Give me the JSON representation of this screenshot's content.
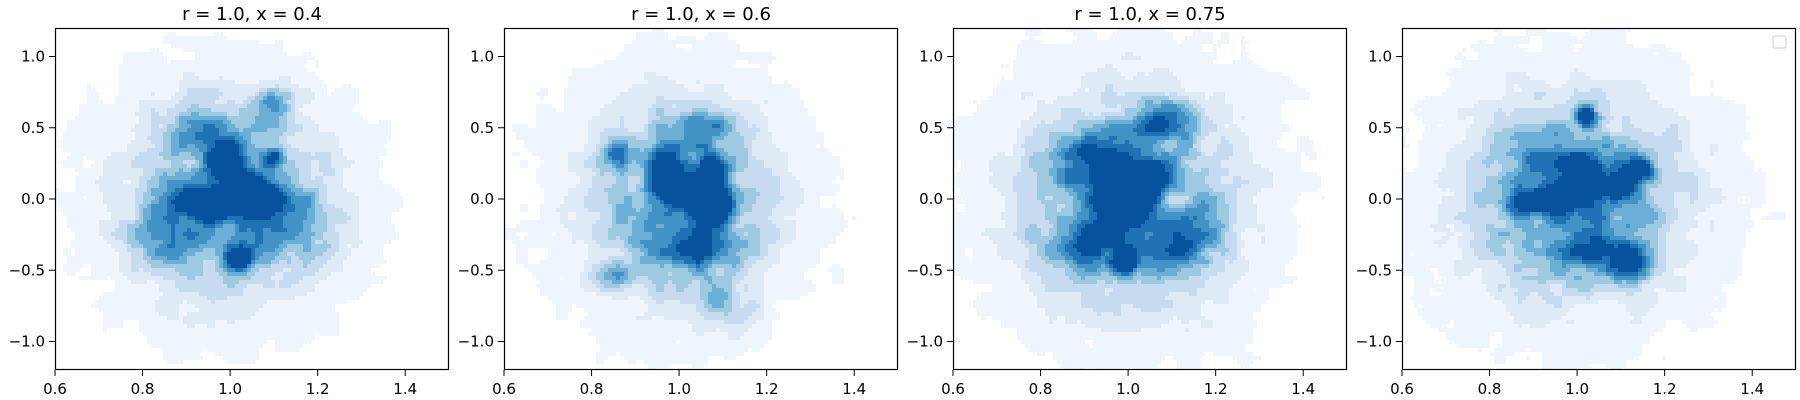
{
  "chart_data": [
    {
      "type": "density-contour",
      "title": "r = 1.0, x = 0.4",
      "xlim": [
        0.6,
        1.5
      ],
      "ylim": [
        -1.2,
        1.2
      ],
      "xticks": [
        0.6,
        0.8,
        1.0,
        1.2,
        1.4
      ],
      "xtick_labels": [
        "0.6",
        "0.8",
        "1.0",
        "1.2",
        "1.4"
      ],
      "yticks": [
        -1.0,
        -0.5,
        0.0,
        0.5,
        1.0
      ],
      "ytick_labels": [
        "−1.0",
        "−0.5",
        "0.0",
        "0.5",
        "1.0"
      ],
      "grid": false,
      "colormap": "Blues",
      "peaks": [
        {
          "x": 0.99,
          "y": 0.28,
          "sx": 0.03,
          "sy": 0.09,
          "w": 1.0
        },
        {
          "x": 0.95,
          "y": -0.03,
          "sx": 0.055,
          "sy": 0.07,
          "w": 1.0
        },
        {
          "x": 1.06,
          "y": 0.02,
          "sx": 0.04,
          "sy": 0.1,
          "w": 0.95
        },
        {
          "x": 1.02,
          "y": -0.42,
          "sx": 0.022,
          "sy": 0.06,
          "w": 0.9
        },
        {
          "x": 1.1,
          "y": 0.3,
          "sx": 0.015,
          "sy": 0.04,
          "w": 0.6
        },
        {
          "x": 0.92,
          "y": 0.5,
          "sx": 0.05,
          "sy": 0.12,
          "w": 0.45
        },
        {
          "x": 1.1,
          "y": 0.65,
          "sx": 0.03,
          "sy": 0.08,
          "w": 0.45
        },
        {
          "x": 0.85,
          "y": -0.25,
          "sx": 0.06,
          "sy": 0.15,
          "w": 0.35
        },
        {
          "x": 1.15,
          "y": -0.2,
          "sx": 0.06,
          "sy": 0.15,
          "w": 0.35
        },
        {
          "x": 1.0,
          "y": 0.0,
          "sx": 0.15,
          "sy": 0.45,
          "w": 0.55
        },
        {
          "x": 1.0,
          "y": 0.0,
          "sx": 0.25,
          "sy": 0.75,
          "w": 0.12
        }
      ]
    },
    {
      "type": "density-contour",
      "title": "r = 1.0, x = 0.6",
      "xlim": [
        0.6,
        1.5
      ],
      "ylim": [
        -1.2,
        1.2
      ],
      "xticks": [
        0.6,
        0.8,
        1.0,
        1.2,
        1.4
      ],
      "xtick_labels": [
        "0.6",
        "0.8",
        "1.0",
        "1.2",
        "1.4"
      ],
      "yticks": [
        -1.0,
        -0.5,
        0.0,
        0.5,
        1.0
      ],
      "ytick_labels": [
        "−1.0",
        "−0.5",
        "0.0",
        "0.5",
        "1.0"
      ],
      "grid": false,
      "colormap": "Blues",
      "peaks": [
        {
          "x": 0.97,
          "y": 0.18,
          "sx": 0.025,
          "sy": 0.13,
          "w": 1.0
        },
        {
          "x": 1.02,
          "y": 0.05,
          "sx": 0.03,
          "sy": 0.08,
          "w": 0.9
        },
        {
          "x": 1.07,
          "y": 0.15,
          "sx": 0.02,
          "sy": 0.12,
          "w": 0.95
        },
        {
          "x": 1.09,
          "y": -0.05,
          "sx": 0.025,
          "sy": 0.08,
          "w": 0.85
        },
        {
          "x": 0.86,
          "y": 0.32,
          "sx": 0.03,
          "sy": 0.07,
          "w": 0.55
        },
        {
          "x": 1.05,
          "y": 0.55,
          "sx": 0.04,
          "sy": 0.08,
          "w": 0.45
        },
        {
          "x": 0.85,
          "y": -0.55,
          "sx": 0.03,
          "sy": 0.06,
          "w": 0.4
        },
        {
          "x": 1.05,
          "y": -0.35,
          "sx": 0.07,
          "sy": 0.12,
          "w": 0.5
        },
        {
          "x": 1.1,
          "y": -0.75,
          "sx": 0.05,
          "sy": 0.12,
          "w": 0.3
        },
        {
          "x": 1.0,
          "y": 0.0,
          "sx": 0.14,
          "sy": 0.45,
          "w": 0.55
        },
        {
          "x": 1.0,
          "y": 0.0,
          "sx": 0.24,
          "sy": 0.75,
          "w": 0.12
        }
      ]
    },
    {
      "type": "density-contour",
      "title": "r = 1.0, x = 0.75",
      "xlim": [
        0.6,
        1.5
      ],
      "ylim": [
        -1.2,
        1.2
      ],
      "xticks": [
        0.6,
        0.8,
        1.0,
        1.2,
        1.4
      ],
      "xtick_labels": [
        "0.6",
        "0.8",
        "1.0",
        "1.2",
        "1.4"
      ],
      "yticks": [
        -1.0,
        -0.5,
        0.0,
        0.5,
        1.0
      ],
      "ytick_labels": [
        "−1.0",
        "−0.5",
        "0.0",
        "0.5",
        "1.0"
      ],
      "grid": false,
      "colormap": "Blues",
      "peaks": [
        {
          "x": 0.97,
          "y": 0.05,
          "sx": 0.03,
          "sy": 0.2,
          "w": 1.0
        },
        {
          "x": 1.05,
          "y": 0.15,
          "sx": 0.03,
          "sy": 0.09,
          "w": 0.95
        },
        {
          "x": 0.99,
          "y": -0.45,
          "sx": 0.02,
          "sy": 0.05,
          "w": 0.85
        },
        {
          "x": 1.1,
          "y": 0.0,
          "sx": 0.02,
          "sy": 0.05,
          "w": -0.35
        },
        {
          "x": 0.9,
          "y": 0.3,
          "sx": 0.05,
          "sy": 0.1,
          "w": 0.5
        },
        {
          "x": 1.08,
          "y": 0.55,
          "sx": 0.05,
          "sy": 0.1,
          "w": 0.5
        },
        {
          "x": 0.9,
          "y": -0.3,
          "sx": 0.06,
          "sy": 0.15,
          "w": 0.5
        },
        {
          "x": 1.12,
          "y": -0.3,
          "sx": 0.06,
          "sy": 0.15,
          "w": 0.45
        },
        {
          "x": 1.0,
          "y": 0.0,
          "sx": 0.16,
          "sy": 0.48,
          "w": 0.6
        },
        {
          "x": 1.0,
          "y": 0.0,
          "sx": 0.27,
          "sy": 0.8,
          "w": 0.13
        }
      ]
    },
    {
      "type": "density-contour",
      "title": "",
      "xlim": [
        0.6,
        1.5
      ],
      "ylim": [
        -1.2,
        1.2
      ],
      "xticks": [
        0.6,
        0.8,
        1.0,
        1.2,
        1.4
      ],
      "xtick_labels": [
        "0.6",
        "0.8",
        "1.0",
        "1.2",
        "1.4"
      ],
      "yticks": [
        -1.0,
        -0.5,
        0.0,
        0.5,
        1.0
      ],
      "ytick_labels": [
        "−1.0",
        "−0.5",
        "0.0",
        "0.5",
        "1.0"
      ],
      "grid": false,
      "colormap": "Blues",
      "legend": "top-right",
      "peaks": [
        {
          "x": 0.92,
          "y": -0.02,
          "sx": 0.05,
          "sy": 0.05,
          "w": 1.0
        },
        {
          "x": 0.97,
          "y": 0.05,
          "sx": 0.03,
          "sy": 0.05,
          "w": 0.8
        },
        {
          "x": 1.02,
          "y": 0.58,
          "sx": 0.015,
          "sy": 0.05,
          "w": 1.0
        },
        {
          "x": 1.14,
          "y": 0.2,
          "sx": 0.025,
          "sy": 0.06,
          "w": 0.95
        },
        {
          "x": 1.09,
          "y": 0.08,
          "sx": 0.03,
          "sy": 0.05,
          "w": 0.8
        },
        {
          "x": 1.0,
          "y": 0.2,
          "sx": 0.04,
          "sy": 0.1,
          "w": 0.5
        },
        {
          "x": 1.13,
          "y": -0.45,
          "sx": 0.03,
          "sy": 0.1,
          "w": 0.6
        },
        {
          "x": 1.05,
          "y": -0.35,
          "sx": 0.05,
          "sy": 0.12,
          "w": 0.45
        },
        {
          "x": 0.9,
          "y": 0.35,
          "sx": 0.05,
          "sy": 0.1,
          "w": 0.35
        },
        {
          "x": 1.0,
          "y": 0.0,
          "sx": 0.16,
          "sy": 0.45,
          "w": 0.6
        },
        {
          "x": 1.0,
          "y": 0.0,
          "sx": 0.27,
          "sy": 0.78,
          "w": 0.13
        }
      ]
    }
  ],
  "colors": {
    "levels": [
      "#ffffff",
      "#eef5fc",
      "#deebf7",
      "#c6dbef",
      "#9ecae1",
      "#6baed6",
      "#4292c6",
      "#2171b5",
      "#08519c"
    ],
    "axis": "#000000",
    "background": "#ffffff"
  }
}
